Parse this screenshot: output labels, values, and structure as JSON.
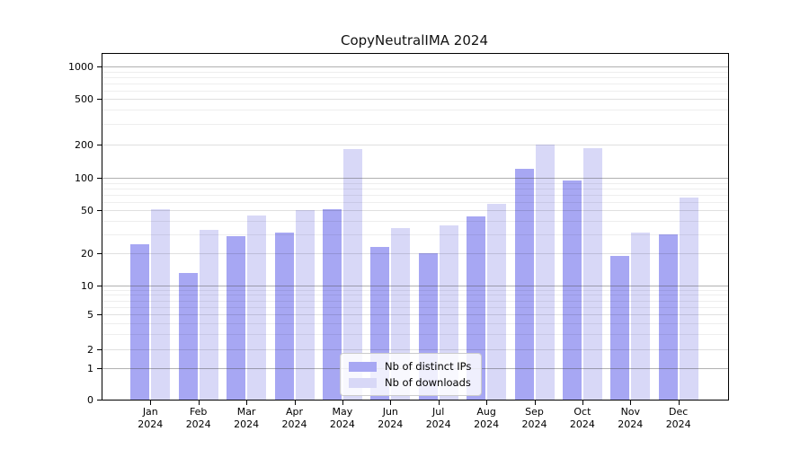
{
  "chart_data": {
    "type": "bar",
    "title": "CopyNeutralIMA 2024",
    "categories": [
      "Jan 2024",
      "Feb 2024",
      "Mar 2024",
      "Apr 2024",
      "May 2024",
      "Jun 2024",
      "Jul 2024",
      "Aug 2024",
      "Sep 2024",
      "Oct 2024",
      "Nov 2024",
      "Dec 2024"
    ],
    "series": [
      {
        "name": "Nb of distinct IPs",
        "color": "#a7a7f3",
        "values": [
          24,
          13,
          29,
          31,
          51,
          23,
          20,
          44,
          120,
          95,
          19,
          30
        ]
      },
      {
        "name": "Nb of downloads",
        "color": "#d8d8f7",
        "values": [
          51,
          33,
          45,
          50,
          182,
          34,
          36,
          57,
          200,
          187,
          31,
          66
        ]
      }
    ],
    "yscale": "symlog",
    "y_ticks": [
      0,
      1,
      2,
      5,
      10,
      20,
      50,
      100,
      200,
      500,
      1000
    ],
    "ylim": [
      0,
      1300
    ],
    "xlabel": "",
    "ylabel": "",
    "grid": true,
    "legend_position": "lower center"
  },
  "colors": {
    "background": "#ffffff",
    "bar_distinct_ips": "#a7a7f3",
    "bar_downloads": "#d8d8f7",
    "grid_major": "#b5b5b5",
    "grid_minor": "#e6e6e6",
    "axis": "#000000",
    "legend_border": "#cccccc"
  }
}
